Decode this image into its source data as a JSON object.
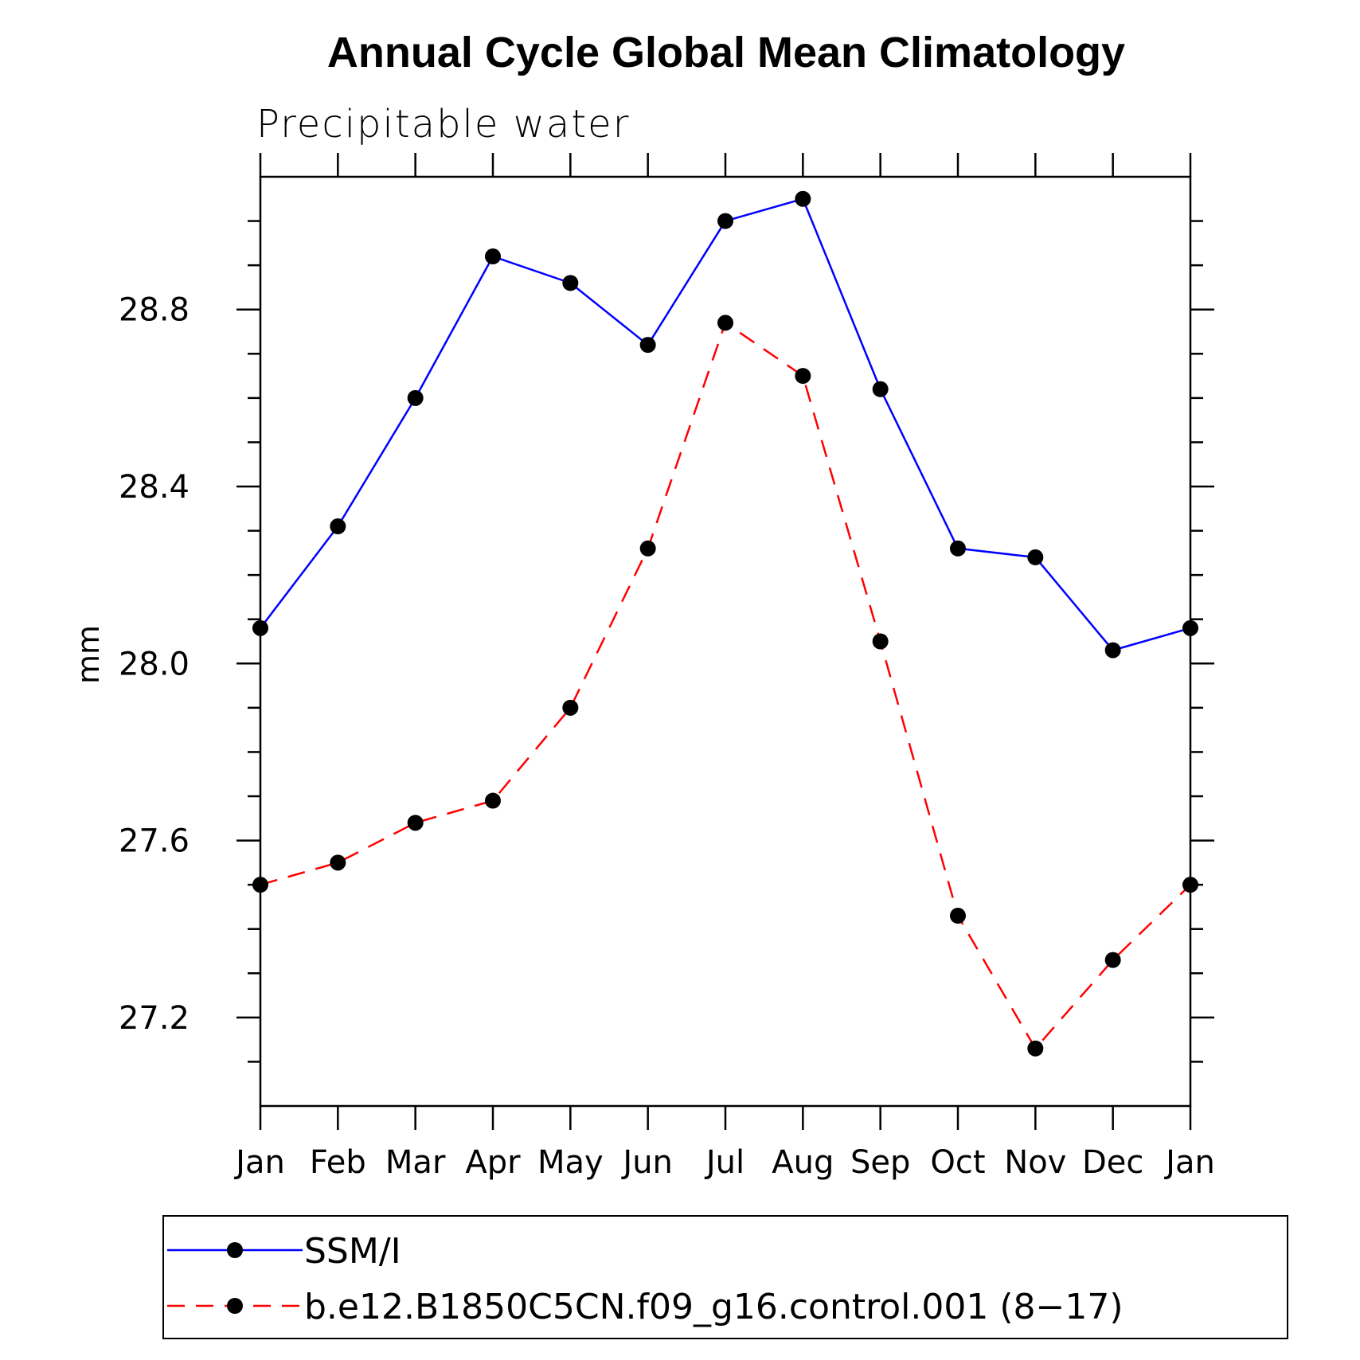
{
  "chart_data": {
    "type": "line",
    "title": "Annual Cycle Global Mean Climatology",
    "subtitle": "Precipitable water",
    "ylabel": "mm",
    "xlabel": "",
    "categories": [
      "Jan",
      "Feb",
      "Mar",
      "Apr",
      "May",
      "Jun",
      "Jul",
      "Aug",
      "Sep",
      "Oct",
      "Nov",
      "Dec",
      "Jan"
    ],
    "ylim": [
      27.0,
      29.1
    ],
    "yticks": [
      "27.2",
      "27.6",
      "28.0",
      "28.4",
      "28.8"
    ],
    "grid": false,
    "legend_position": "bottom",
    "series": [
      {
        "name": "SSM/I",
        "color": "#0000ff",
        "dash": "solid",
        "values": [
          28.08,
          28.31,
          28.6,
          28.92,
          28.86,
          28.72,
          29.0,
          29.05,
          28.62,
          28.26,
          28.24,
          28.03,
          28.08
        ]
      },
      {
        "name": "b.e12.B1850C5CN.f09_g16.control.001 (8−17)",
        "color": "#ff0000",
        "dash": "dashed",
        "values": [
          27.5,
          27.55,
          27.64,
          27.69,
          27.9,
          28.26,
          28.77,
          28.65,
          28.05,
          27.43,
          27.13,
          27.33,
          27.5
        ]
      }
    ]
  }
}
